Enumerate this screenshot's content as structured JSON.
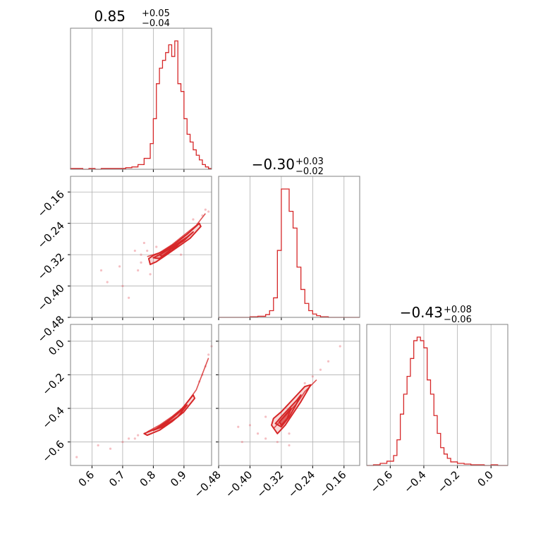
{
  "figure": {
    "params": [
      {
        "title_main": "0.85",
        "title_sup": "+0.05",
        "title_sub": "−0.04"
      },
      {
        "title_main": "−0.30",
        "title_sup": "+0.03",
        "title_sub": "−0.02"
      },
      {
        "title_main": "−0.43",
        "title_sup": "+0.08",
        "title_sub": "−0.06"
      }
    ],
    "colors": {
      "series": "#d62728",
      "grid": "#b0b0b0",
      "frame": "#808080",
      "points": "#e8707a"
    }
  },
  "chart_data": {
    "type": "corner",
    "params": [
      {
        "range": [
          0.53,
          0.99
        ],
        "ticks": [
          0.6,
          0.7,
          0.8,
          0.9
        ],
        "tick_labels": [
          "0.6",
          "0.7",
          "0.8",
          "0.9"
        ],
        "median": 0.85,
        "err_plus": 0.05,
        "err_minus": 0.04,
        "histogram": {
          "edges": [
            0.53,
            0.55,
            0.57,
            0.59,
            0.61,
            0.63,
            0.65,
            0.67,
            0.69,
            0.71,
            0.73,
            0.75,
            0.77,
            0.79,
            0.8,
            0.81,
            0.82,
            0.83,
            0.84,
            0.85,
            0.86,
            0.87,
            0.88,
            0.89,
            0.9,
            0.91,
            0.92,
            0.93,
            0.94,
            0.95,
            0.96,
            0.97,
            0.98,
            0.99
          ],
          "counts": [
            1,
            1,
            0,
            1,
            0,
            1,
            1,
            1,
            1,
            2,
            3,
            6,
            14,
            33,
            65,
            110,
            130,
            140,
            150,
            160,
            145,
            165,
            110,
            100,
            65,
            45,
            35,
            25,
            18,
            12,
            6,
            3,
            1
          ]
        }
      },
      {
        "range": [
          -0.48,
          -0.12
        ],
        "ticks": [
          -0.48,
          -0.4,
          -0.32,
          -0.24,
          -0.16
        ],
        "tick_labels": [
          "−0.48",
          "−0.40",
          "−0.32",
          "−0.24",
          "−0.16"
        ],
        "median": -0.3,
        "err_plus": 0.03,
        "err_minus": 0.02,
        "histogram": {
          "edges": [
            -0.48,
            -0.46,
            -0.44,
            -0.42,
            -0.4,
            -0.38,
            -0.36,
            -0.35,
            -0.34,
            -0.33,
            -0.32,
            -0.31,
            -0.3,
            -0.29,
            -0.28,
            -0.27,
            -0.26,
            -0.25,
            -0.24,
            -0.23,
            -0.22,
            -0.2,
            -0.18,
            -0.16,
            -0.14,
            -0.12
          ],
          "counts": [
            0,
            0,
            0,
            0,
            1,
            2,
            5,
            12,
            35,
            120,
            230,
            230,
            190,
            160,
            90,
            50,
            25,
            12,
            6,
            3,
            1,
            0,
            0,
            0,
            0
          ]
        }
      },
      {
        "range": [
          -0.74,
          0.1
        ],
        "ticks": [
          -0.6,
          -0.4,
          -0.2,
          0.0
        ],
        "tick_labels": [
          "−0.6",
          "−0.4",
          "−0.2",
          "0.0"
        ],
        "median": -0.43,
        "err_plus": 0.08,
        "err_minus": 0.06,
        "histogram": {
          "edges": [
            -0.74,
            -0.7,
            -0.66,
            -0.62,
            -0.58,
            -0.56,
            -0.54,
            -0.52,
            -0.5,
            -0.48,
            -0.46,
            -0.44,
            -0.42,
            -0.4,
            -0.38,
            -0.36,
            -0.34,
            -0.32,
            -0.3,
            -0.28,
            -0.26,
            -0.24,
            -0.2,
            -0.16,
            -0.12,
            -0.08,
            -0.04,
            0.0,
            0.04,
            0.1
          ],
          "counts": [
            0,
            1,
            3,
            6,
            14,
            36,
            72,
            100,
            125,
            150,
            175,
            180,
            175,
            165,
            120,
            100,
            70,
            45,
            25,
            16,
            10,
            5,
            3,
            2,
            1,
            1,
            0,
            1,
            0
          ]
        }
      }
    ],
    "pairs": [
      {
        "x_param": 0,
        "y_param": 1,
        "ridge": [
          [
            0.78,
            -0.325
          ],
          [
            0.82,
            -0.315
          ],
          [
            0.86,
            -0.295
          ],
          [
            0.9,
            -0.27
          ],
          [
            0.94,
            -0.245
          ],
          [
            0.97,
            -0.215
          ]
        ],
        "contours": [
          [
            [
              0.785,
              -0.33
            ],
            [
              0.8,
              -0.322
            ],
            [
              0.83,
              -0.312
            ],
            [
              0.87,
              -0.292
            ],
            [
              0.91,
              -0.268
            ],
            [
              0.95,
              -0.24
            ],
            [
              0.955,
              -0.248
            ],
            [
              0.92,
              -0.278
            ],
            [
              0.88,
              -0.3
            ],
            [
              0.84,
              -0.322
            ],
            [
              0.81,
              -0.338
            ],
            [
              0.79,
              -0.345
            ]
          ],
          [
            [
              0.8,
              -0.328
            ],
            [
              0.83,
              -0.316
            ],
            [
              0.87,
              -0.296
            ],
            [
              0.91,
              -0.275
            ],
            [
              0.93,
              -0.262
            ],
            [
              0.9,
              -0.284
            ],
            [
              0.86,
              -0.305
            ],
            [
              0.82,
              -0.33
            ]
          ],
          [
            [
              0.82,
              -0.32
            ],
            [
              0.86,
              -0.302
            ],
            [
              0.89,
              -0.288
            ],
            [
              0.86,
              -0.31
            ],
            [
              0.83,
              -0.325
            ]
          ]
        ],
        "points": [
          [
            0.63,
            -0.36
          ],
          [
            0.65,
            -0.39
          ],
          [
            0.69,
            -0.35
          ],
          [
            0.72,
            -0.43
          ],
          [
            0.7,
            -0.4
          ],
          [
            0.74,
            -0.31
          ],
          [
            0.76,
            -0.34
          ],
          [
            0.77,
            -0.29
          ],
          [
            0.75,
            -0.36
          ],
          [
            0.79,
            -0.37
          ],
          [
            0.97,
            -0.205
          ],
          [
            0.98,
            -0.21
          ],
          [
            0.96,
            -0.22
          ],
          [
            0.78,
            -0.31
          ],
          [
            0.8,
            -0.34
          ],
          [
            0.81,
            -0.3
          ],
          [
            0.76,
            -0.32
          ],
          [
            0.89,
            -0.32
          ],
          [
            0.93,
            -0.23
          ]
        ]
      },
      {
        "x_param": 0,
        "y_param": 2,
        "ridge": [
          [
            0.78,
            -0.54
          ],
          [
            0.82,
            -0.5
          ],
          [
            0.86,
            -0.45
          ],
          [
            0.9,
            -0.39
          ],
          [
            0.94,
            -0.29
          ],
          [
            0.98,
            -0.1
          ]
        ],
        "contours": [
          [
            [
              0.77,
              -0.55
            ],
            [
              0.81,
              -0.52
            ],
            [
              0.85,
              -0.47
            ],
            [
              0.89,
              -0.41
            ],
            [
              0.93,
              -0.32
            ],
            [
              0.935,
              -0.34
            ],
            [
              0.9,
              -0.42
            ],
            [
              0.86,
              -0.48
            ],
            [
              0.82,
              -0.53
            ],
            [
              0.78,
              -0.56
            ]
          ],
          [
            [
              0.8,
              -0.53
            ],
            [
              0.84,
              -0.49
            ],
            [
              0.88,
              -0.43
            ],
            [
              0.91,
              -0.38
            ],
            [
              0.88,
              -0.45
            ],
            [
              0.83,
              -0.51
            ]
          ]
        ],
        "points": [
          [
            0.62,
            -0.62
          ],
          [
            0.66,
            -0.64
          ],
          [
            0.7,
            -0.6
          ],
          [
            0.55,
            -0.69
          ],
          [
            0.72,
            -0.58
          ],
          [
            0.75,
            -0.56
          ],
          [
            0.96,
            -0.2
          ],
          [
            0.97,
            -0.15
          ],
          [
            0.98,
            -0.08
          ],
          [
            0.99,
            -0.03
          ],
          [
            0.95,
            -0.24
          ],
          [
            0.74,
            -0.58
          ]
        ]
      },
      {
        "x_param": 1,
        "y_param": 2,
        "ridge": [
          [
            -0.34,
            -0.52
          ],
          [
            -0.32,
            -0.47
          ],
          [
            -0.3,
            -0.42
          ],
          [
            -0.28,
            -0.37
          ],
          [
            -0.26,
            -0.3
          ],
          [
            -0.23,
            -0.23
          ]
        ],
        "contours": [
          [
            [
              -0.345,
              -0.5
            ],
            [
              -0.34,
              -0.46
            ],
            [
              -0.32,
              -0.42
            ],
            [
              -0.3,
              -0.37
            ],
            [
              -0.28,
              -0.32
            ],
            [
              -0.26,
              -0.27
            ],
            [
              -0.245,
              -0.26
            ],
            [
              -0.255,
              -0.3
            ],
            [
              -0.27,
              -0.36
            ],
            [
              -0.29,
              -0.43
            ],
            [
              -0.31,
              -0.5
            ],
            [
              -0.33,
              -0.55
            ]
          ],
          [
            [
              -0.335,
              -0.49
            ],
            [
              -0.32,
              -0.45
            ],
            [
              -0.3,
              -0.4
            ],
            [
              -0.28,
              -0.35
            ],
            [
              -0.27,
              -0.32
            ],
            [
              -0.285,
              -0.39
            ],
            [
              -0.3,
              -0.45
            ],
            [
              -0.32,
              -0.51
            ]
          ],
          [
            [
              -0.325,
              -0.48
            ],
            [
              -0.31,
              -0.44
            ],
            [
              -0.295,
              -0.4
            ],
            [
              -0.305,
              -0.46
            ],
            [
              -0.32,
              -0.5
            ]
          ]
        ],
        "points": [
          [
            -0.4,
            -0.5
          ],
          [
            -0.43,
            -0.51
          ],
          [
            -0.38,
            -0.55
          ],
          [
            -0.42,
            -0.6
          ],
          [
            -0.36,
            -0.58
          ],
          [
            -0.33,
            -0.6
          ],
          [
            -0.3,
            -0.62
          ],
          [
            -0.24,
            -0.21
          ],
          [
            -0.22,
            -0.17
          ],
          [
            -0.2,
            -0.12
          ],
          [
            -0.17,
            -0.03
          ],
          [
            -0.36,
            -0.45
          ],
          [
            -0.3,
            -0.55
          ],
          [
            -0.26,
            -0.25
          ]
        ]
      }
    ]
  }
}
